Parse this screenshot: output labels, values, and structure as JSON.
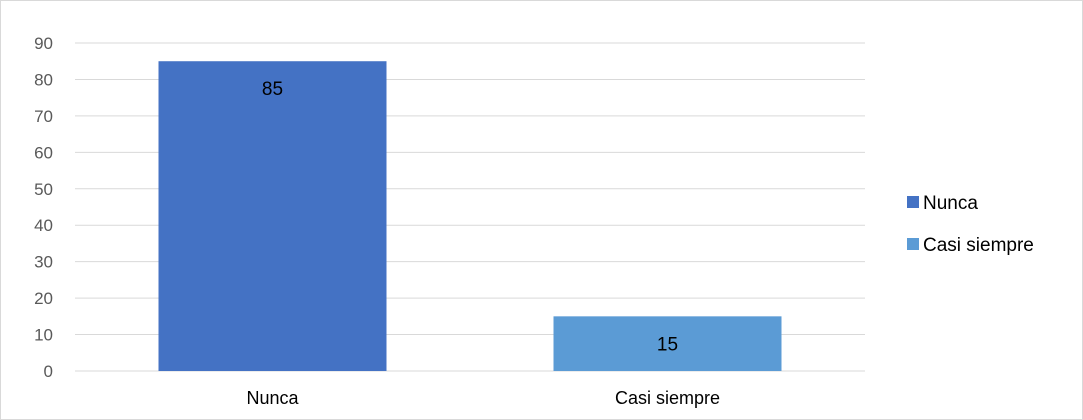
{
  "chart_data": {
    "type": "bar",
    "categories": [
      "Nunca",
      "Casi siempre"
    ],
    "values": [
      85,
      15
    ],
    "title": "",
    "xlabel": "",
    "ylabel": "",
    "ylim": [
      0,
      90
    ],
    "yticks": [
      0,
      10,
      20,
      30,
      40,
      50,
      60,
      70,
      80,
      90
    ],
    "data_labels": [
      "85",
      "15"
    ],
    "colors": [
      "#4472c4",
      "#5b9bd5"
    ],
    "grid": true,
    "gridline_color": "#d9d9d9",
    "legend": {
      "position": "right",
      "entries": [
        {
          "label": "Nunca",
          "color": "#4472c4"
        },
        {
          "label": "Casi siempre",
          "color": "#5b9bd5"
        }
      ]
    }
  }
}
